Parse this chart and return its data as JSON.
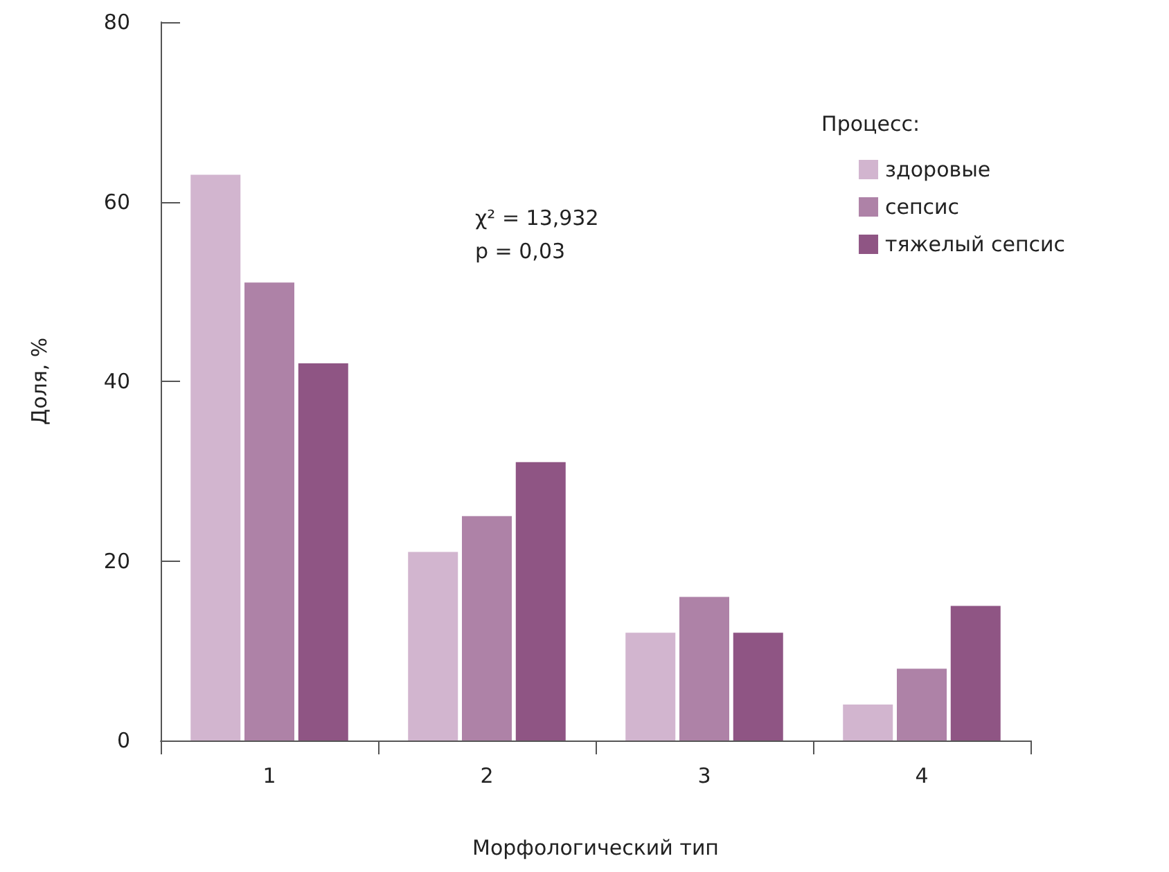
{
  "chart_data": {
    "type": "bar",
    "xlabel": "Морфологический тип",
    "ylabel": "Доля, %",
    "legend_title": "Процесс:",
    "categories": [
      "1",
      "2",
      "3",
      "4"
    ],
    "series": [
      {
        "name": "здоровые",
        "color": "#d2b5cf",
        "values": [
          63,
          21,
          12,
          4
        ]
      },
      {
        "name": "сепсис",
        "color": "#ae82a7",
        "values": [
          51,
          25,
          16,
          8
        ]
      },
      {
        "name": "тяжелый сепсис",
        "color": "#8f5584",
        "values": [
          42,
          31,
          12,
          15
        ]
      }
    ],
    "ylim": [
      0,
      80
    ],
    "yticks": [
      0,
      20,
      40,
      60,
      80
    ],
    "grid": false,
    "legend": "top right",
    "annotations": [
      "χ² = 13,932",
      "p = 0,03"
    ]
  }
}
